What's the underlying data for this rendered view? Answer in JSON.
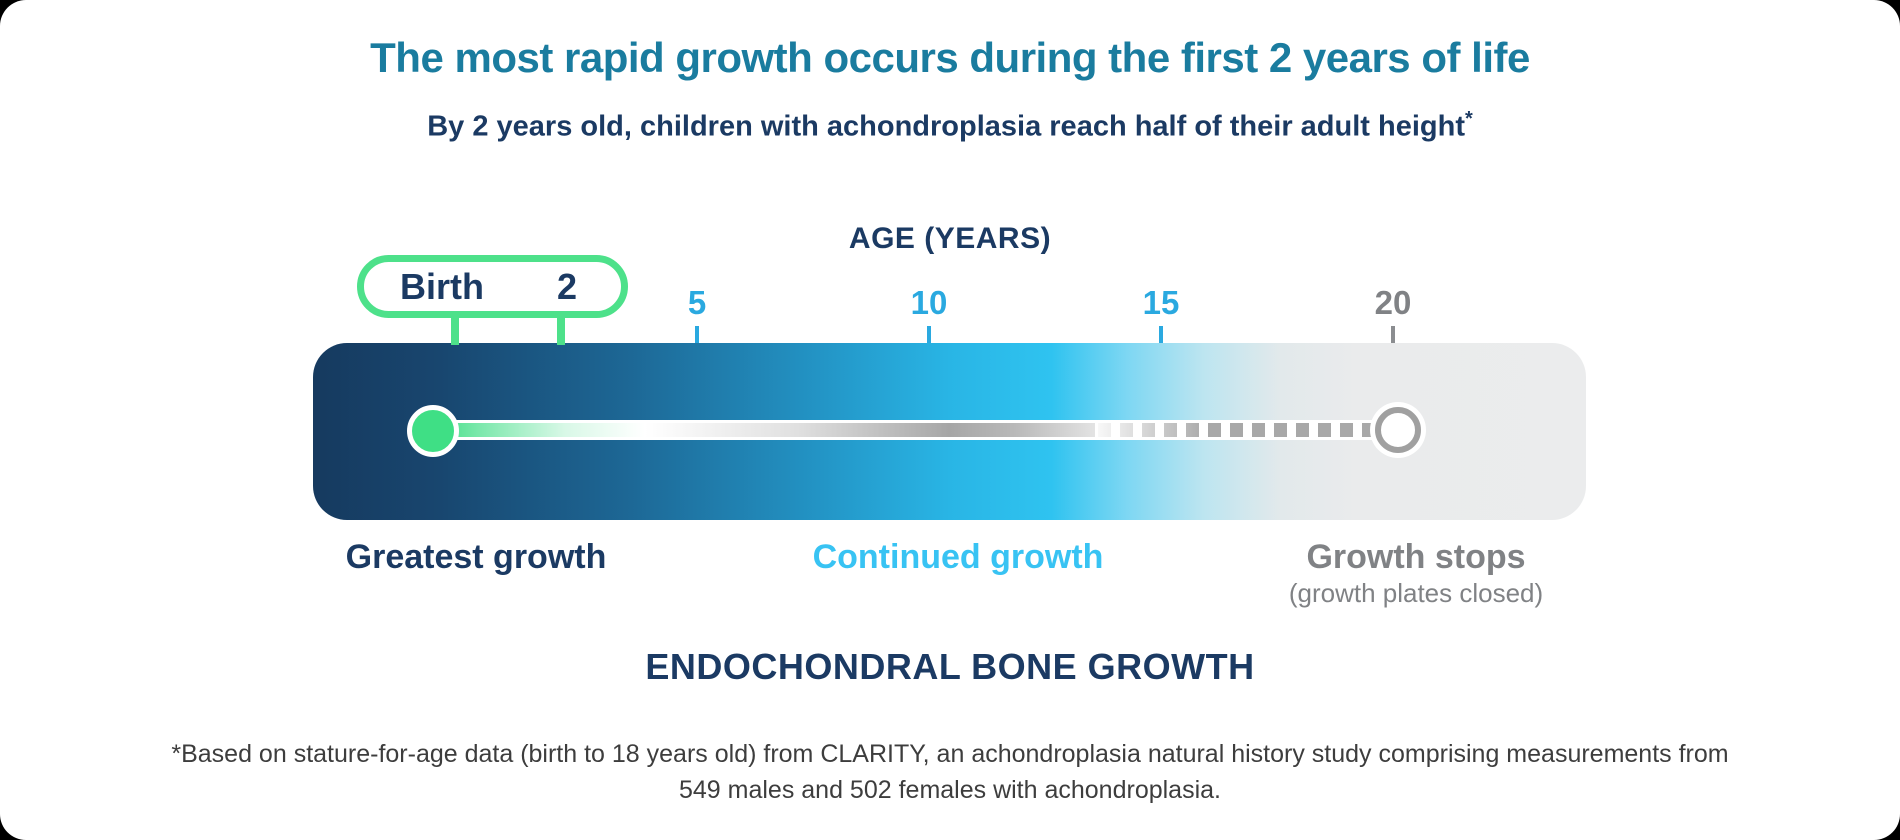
{
  "page": {
    "title": "The most rapid growth occurs during the first 2 years of life",
    "subtitle": "By 2 years old, children with achondroplasia reach half of their adult height",
    "subtitle_footnote_marker": "*",
    "section_heading": "ENDOCHONDRAL BONE GROWTH",
    "footnote_lines": [
      "*Based on stature-for-age data (birth to 18 years old) from CLARITY, an achondroplasia natural history study comprising measurements from",
      "549 males and 502 females with achondroplasia."
    ]
  },
  "chart_data": {
    "type": "line",
    "subtype": "annotated-timeline",
    "title": "ENDOCHONDRAL BONE GROWTH",
    "axis_label": "AGE (YEARS)",
    "x_range_years": [
      0,
      20
    ],
    "grid": false,
    "legend_position": "none",
    "ticks": [
      {
        "label": "5",
        "value": 5,
        "color": "#2aa9e0"
      },
      {
        "label": "10",
        "value": 10,
        "color": "#2aa9e0"
      },
      {
        "label": "15",
        "value": 15,
        "color": "#2aa9e0"
      },
      {
        "label": "20",
        "value": 20,
        "color": "#808285"
      }
    ],
    "callout": {
      "start_label": "Birth",
      "end_label": "2",
      "start_value": 0,
      "end_value": 2,
      "color": "#4de18a"
    },
    "phases": [
      {
        "label": "Greatest growth",
        "years": [
          0,
          2
        ],
        "color": "#1b3a63"
      },
      {
        "label": "Continued growth",
        "years": [
          2,
          15
        ],
        "color": "#38c3f3"
      },
      {
        "label": "Growth stops",
        "sublabel": "(growth plates closed)",
        "years": [
          15,
          20
        ],
        "color": "#808285"
      }
    ],
    "track": {
      "solid_segment_years": [
        0,
        14
      ],
      "dashed_segment_years": [
        14,
        20
      ],
      "start_marker": "green-filled-circle",
      "end_marker": "gray-open-circle"
    }
  },
  "colors": {
    "title_teal": "#1a7c9f",
    "navy": "#1b3a63",
    "tick_blue": "#2aa9e0",
    "phase_light_blue": "#38c3f3",
    "gray": "#808285",
    "green": "#4de18a",
    "bar_navy": "#163a5f",
    "bar_cyan": "#2fc3f0",
    "bar_gray": "#ebeced"
  }
}
